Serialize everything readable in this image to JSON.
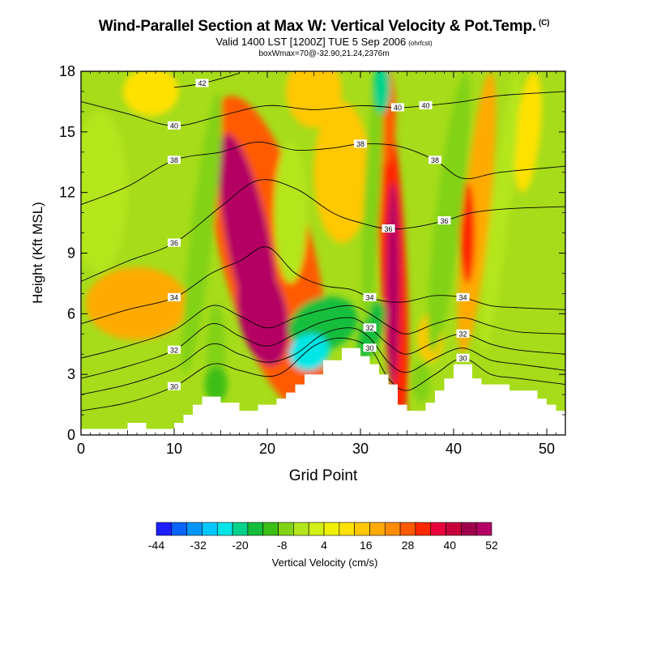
{
  "title": {
    "main": "Wind-Parallel Section at Max W: Vertical Velocity & Pot.Temp.",
    "copyright": "(C)",
    "valid": "Valid 1400 LST [1200Z] TUE 5 Sep 2006",
    "valid_suffix": "(ohrfcst)",
    "box": "boxWmax=70@-32.90,21.24,2376m"
  },
  "chart_data": {
    "type": "heatmap",
    "title": "Wind-Parallel Section at Max W: Vertical Velocity & Pot.Temp.",
    "xlabel": "Grid Point",
    "ylabel": "Height (Kft MSL)",
    "xlim": [
      0,
      52
    ],
    "ylim": [
      0,
      18
    ],
    "xticks": [
      "0",
      "10",
      "20",
      "30",
      "40",
      "50"
    ],
    "yticks": [
      "0",
      "3",
      "6",
      "9",
      "12",
      "15",
      "18"
    ],
    "colorbar": {
      "label": "Vertical Velocity (cm/s)",
      "tick_labels": [
        "-44",
        "-32",
        "-20",
        "-8",
        "4",
        "16",
        "28",
        "40",
        "52"
      ],
      "colors": [
        "#1e1eff",
        "#0a64ff",
        "#0096ff",
        "#00c8ff",
        "#00e6e6",
        "#00d28c",
        "#14be3c",
        "#3cbe14",
        "#82d214",
        "#b4e61e",
        "#d2f014",
        "#f0f000",
        "#ffe100",
        "#ffc800",
        "#ffaa00",
        "#ff8c00",
        "#ff5a00",
        "#ff2800",
        "#e6003c",
        "#c8003c",
        "#a0004b",
        "#b40064"
      ]
    },
    "terrain_kft": [
      [
        0,
        0.3
      ],
      [
        5,
        0.3
      ],
      [
        5,
        0.6
      ],
      [
        7,
        0.6
      ],
      [
        7,
        0.3
      ],
      [
        10,
        0.3
      ],
      [
        10,
        0.6
      ],
      [
        11,
        0.6
      ],
      [
        11,
        1.0
      ],
      [
        12,
        1.0
      ],
      [
        12,
        1.5
      ],
      [
        13,
        1.5
      ],
      [
        13,
        1.9
      ],
      [
        15,
        1.9
      ],
      [
        15,
        1.6
      ],
      [
        17,
        1.6
      ],
      [
        17,
        1.2
      ],
      [
        19,
        1.2
      ],
      [
        19,
        1.5
      ],
      [
        21,
        1.5
      ],
      [
        21,
        1.8
      ],
      [
        22,
        1.8
      ],
      [
        22,
        2.1
      ],
      [
        23,
        2.1
      ],
      [
        23,
        2.5
      ],
      [
        24,
        2.5
      ],
      [
        24,
        3.0
      ],
      [
        26,
        3.0
      ],
      [
        26,
        3.7
      ],
      [
        28,
        3.7
      ],
      [
        28,
        4.3
      ],
      [
        30,
        4.3
      ],
      [
        30,
        3.9
      ],
      [
        31,
        3.9
      ],
      [
        31,
        3.5
      ],
      [
        32,
        3.5
      ],
      [
        32,
        3.0
      ],
      [
        33,
        3.0
      ],
      [
        33,
        2.5
      ],
      [
        34,
        2.5
      ],
      [
        34,
        1.5
      ],
      [
        35,
        1.5
      ],
      [
        35,
        1.2
      ],
      [
        37,
        1.2
      ],
      [
        37,
        1.6
      ],
      [
        38,
        1.6
      ],
      [
        38,
        2.2
      ],
      [
        39,
        2.2
      ],
      [
        39,
        2.8
      ],
      [
        40,
        2.8
      ],
      [
        40,
        3.5
      ],
      [
        42,
        3.5
      ],
      [
        42,
        2.8
      ],
      [
        43,
        2.8
      ],
      [
        43,
        2.5
      ],
      [
        46,
        2.5
      ],
      [
        46,
        2.2
      ],
      [
        49,
        2.2
      ],
      [
        49,
        1.8
      ],
      [
        50,
        1.8
      ],
      [
        50,
        1.5
      ],
      [
        51,
        1.5
      ],
      [
        51,
        1.2
      ],
      [
        52,
        1.2
      ]
    ],
    "w_cells_cm_s": [
      {
        "x": 20,
        "y": 9,
        "rx": 5,
        "ry": 8,
        "v": 20,
        "r": -0.25
      },
      {
        "x": 18,
        "y": 9.5,
        "rx": 2.3,
        "ry": 5.5,
        "v": 40,
        "r": -0.2
      },
      {
        "x": 19.5,
        "y": 6,
        "rx": 2.6,
        "ry": 2.6,
        "v": 48,
        "r": -0.2
      },
      {
        "x": 16.5,
        "y": 10.5,
        "rx": 1.1,
        "ry": 3.0,
        "v": 46,
        "r": -0.1
      },
      {
        "x": 33.5,
        "y": 8.5,
        "rx": 1.4,
        "ry": 8,
        "v": 24,
        "r": -0.05
      },
      {
        "x": 33.5,
        "y": 7.5,
        "rx": 0.7,
        "ry": 5,
        "v": 50,
        "r": 0
      },
      {
        "x": 32.7,
        "y": 15.8,
        "rx": 1.1,
        "ry": 2.5,
        "v": 20,
        "r": 0
      },
      {
        "x": 42.5,
        "y": 11,
        "rx": 1.4,
        "ry": 7,
        "v": 12,
        "r": 0.1
      },
      {
        "x": 41.5,
        "y": 10,
        "rx": 0.8,
        "ry": 2.5,
        "v": 24,
        "r": 0
      },
      {
        "x": 48,
        "y": 15,
        "rx": 1.3,
        "ry": 3,
        "v": 6,
        "r": 0.1
      },
      {
        "x": 28,
        "y": 13,
        "rx": 3,
        "ry": 3.5,
        "v": 10,
        "r": 0
      },
      {
        "x": 25,
        "y": 17,
        "rx": 3,
        "ry": 1.8,
        "v": 10,
        "r": 0
      },
      {
        "x": 6,
        "y": 6.5,
        "rx": 5.5,
        "ry": 1.8,
        "v": 12,
        "r": 0
      },
      {
        "x": 7.5,
        "y": 17,
        "rx": 3,
        "ry": 1.2,
        "v": 4,
        "r": 0
      },
      {
        "x": 37.5,
        "y": 4.8,
        "rx": 1.4,
        "ry": 1.2,
        "v": 8,
        "r": 0
      },
      {
        "x": 13,
        "y": 10,
        "rx": 1.2,
        "ry": 7,
        "v": -12,
        "r": 0.12
      },
      {
        "x": 14.5,
        "y": 4,
        "rx": 1,
        "ry": 2.5,
        "v": -10,
        "r": 0
      },
      {
        "x": 22.5,
        "y": 11,
        "rx": 1.8,
        "ry": 3.5,
        "v": -8,
        "r": 0
      },
      {
        "x": 26,
        "y": 5.5,
        "rx": 3.8,
        "ry": 1.3,
        "v": -18,
        "r": -0.35
      },
      {
        "x": 24.5,
        "y": 4.1,
        "rx": 2.2,
        "ry": 0.9,
        "v": -28,
        "r": -0.45
      },
      {
        "x": 31.2,
        "y": 5.2,
        "rx": 1.2,
        "ry": 1.5,
        "v": -20,
        "r": 0.3
      },
      {
        "x": 31.3,
        "y": 12,
        "rx": 0.9,
        "ry": 6.5,
        "v": -10,
        "r": 0.05
      },
      {
        "x": 32.3,
        "y": 17.2,
        "rx": 0.9,
        "ry": 1.3,
        "v": -22,
        "r": 0
      },
      {
        "x": 39.5,
        "y": 11,
        "rx": 1.4,
        "ry": 7,
        "v": -10,
        "r": 0.12
      },
      {
        "x": 45,
        "y": 11,
        "rx": 1,
        "ry": 7,
        "v": -8,
        "r": 0.12
      },
      {
        "x": 2,
        "y": 12,
        "rx": 3,
        "ry": 4,
        "v": -6,
        "r": 0
      },
      {
        "x": 36.5,
        "y": 2.6,
        "rx": 1,
        "ry": 1,
        "v": -10,
        "r": 0
      },
      {
        "x": 14.5,
        "y": 2.5,
        "rx": 1.2,
        "ry": 0.9,
        "v": -14,
        "r": 0
      }
    ],
    "theta_contours": [
      {
        "label": "30",
        "pts": [
          [
            0,
            1.2
          ],
          [
            5,
            1.6
          ],
          [
            10,
            2.4
          ],
          [
            14,
            3.5
          ],
          [
            17,
            3.2
          ],
          [
            20,
            2.9
          ],
          [
            22,
            3.2
          ],
          [
            25,
            4.4
          ],
          [
            28,
            4.8
          ],
          [
            31,
            4.3
          ],
          [
            33,
            2.8
          ],
          [
            35,
            2.2
          ],
          [
            38,
            3.0
          ],
          [
            41,
            3.8
          ],
          [
            44,
            3.0
          ],
          [
            47,
            2.8
          ],
          [
            52,
            2.5
          ]
        ]
      },
      {
        "label": "",
        "pts": [
          [
            0,
            2.0
          ],
          [
            5,
            2.5
          ],
          [
            10,
            3.3
          ],
          [
            14,
            4.5
          ],
          [
            17,
            4.0
          ],
          [
            20,
            3.6
          ],
          [
            23,
            4.0
          ],
          [
            26,
            5.0
          ],
          [
            29,
            5.3
          ],
          [
            31,
            4.8
          ],
          [
            33,
            3.6
          ],
          [
            35,
            3.1
          ],
          [
            38,
            3.8
          ],
          [
            41,
            4.3
          ],
          [
            44,
            3.7
          ],
          [
            47,
            3.5
          ],
          [
            52,
            3.2
          ]
        ]
      },
      {
        "label": "32",
        "pts": [
          [
            0,
            2.8
          ],
          [
            5,
            3.4
          ],
          [
            10,
            4.2
          ],
          [
            14,
            5.5
          ],
          [
            17,
            4.9
          ],
          [
            20,
            4.4
          ],
          [
            23,
            5.0
          ],
          [
            26,
            5.6
          ],
          [
            29,
            5.8
          ],
          [
            31,
            5.3
          ],
          [
            33,
            4.5
          ],
          [
            35,
            4.0
          ],
          [
            38,
            4.6
          ],
          [
            41,
            5.0
          ],
          [
            44,
            4.5
          ],
          [
            47,
            4.2
          ],
          [
            52,
            4.0
          ]
        ]
      },
      {
        "label": "",
        "pts": [
          [
            0,
            3.8
          ],
          [
            5,
            4.4
          ],
          [
            10,
            5.2
          ],
          [
            14,
            6.4
          ],
          [
            17,
            5.9
          ],
          [
            20,
            5.3
          ],
          [
            23,
            5.8
          ],
          [
            26,
            6.2
          ],
          [
            29,
            6.4
          ],
          [
            31,
            6.0
          ],
          [
            33,
            5.4
          ],
          [
            35,
            5.0
          ],
          [
            38,
            5.5
          ],
          [
            41,
            5.8
          ],
          [
            44,
            5.4
          ],
          [
            47,
            5.1
          ],
          [
            52,
            5.0
          ]
        ]
      },
      {
        "label": "34",
        "pts": [
          [
            0,
            5.5
          ],
          [
            5,
            6.2
          ],
          [
            10,
            6.8
          ],
          [
            14,
            8.0
          ],
          [
            17,
            8.6
          ],
          [
            20,
            9.3
          ],
          [
            23,
            8.0
          ],
          [
            26,
            7.4
          ],
          [
            29,
            7.2
          ],
          [
            31,
            6.8
          ],
          [
            33,
            6.6
          ],
          [
            35,
            6.6
          ],
          [
            38,
            6.9
          ],
          [
            41,
            6.8
          ],
          [
            44,
            6.4
          ],
          [
            47,
            6.3
          ],
          [
            52,
            6.2
          ]
        ]
      },
      {
        "label": "36",
        "pts": [
          [
            0,
            7.6
          ],
          [
            5,
            8.6
          ],
          [
            10,
            9.5
          ],
          [
            15,
            11.3
          ],
          [
            19,
            12.6
          ],
          [
            23,
            12.2
          ],
          [
            27,
            11.0
          ],
          [
            30,
            10.5
          ],
          [
            33,
            10.2
          ],
          [
            36,
            10.3
          ],
          [
            39,
            10.6
          ],
          [
            42,
            11.0
          ],
          [
            46,
            11.2
          ],
          [
            52,
            11.3
          ]
        ]
      },
      {
        "label": "38",
        "pts": [
          [
            0,
            11.4
          ],
          [
            5,
            12.3
          ],
          [
            10,
            13.6
          ],
          [
            15,
            14.0
          ],
          [
            19,
            14.5
          ],
          [
            23,
            14.1
          ],
          [
            27,
            14.2
          ],
          [
            30,
            14.4
          ],
          [
            34,
            14.3
          ],
          [
            38,
            13.6
          ],
          [
            41,
            12.7
          ],
          [
            45,
            13.0
          ],
          [
            52,
            13.3
          ]
        ]
      },
      {
        "label": "40",
        "pts": [
          [
            0,
            16.5
          ],
          [
            5,
            15.9
          ],
          [
            10,
            15.3
          ],
          [
            15,
            15.8
          ],
          [
            20,
            16.3
          ],
          [
            25,
            16.1
          ],
          [
            30,
            16.3
          ],
          [
            34,
            16.2
          ],
          [
            37,
            16.3
          ],
          [
            41,
            16.5
          ],
          [
            45,
            16.8
          ],
          [
            52,
            17.0
          ]
        ]
      },
      {
        "label": "42",
        "pts": [
          [
            10,
            17.2
          ],
          [
            13,
            17.4
          ],
          [
            17,
            17.9
          ]
        ]
      }
    ]
  }
}
